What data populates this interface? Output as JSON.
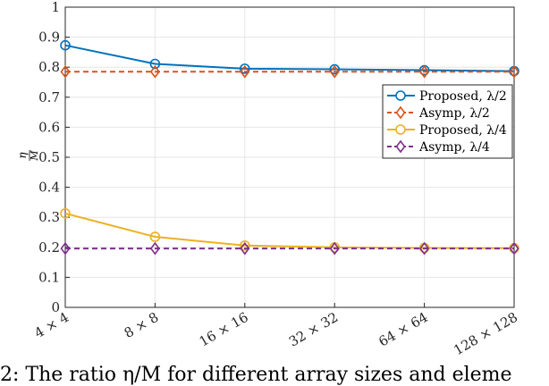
{
  "chart_data": {
    "type": "line",
    "categories": [
      "4 × 4",
      "8 × 8",
      "16 × 16",
      "32 × 32",
      "64 × 64",
      "128 × 128"
    ],
    "ylabel_num": "η",
    "ylabel_den": "M",
    "ylim": [
      0,
      1
    ],
    "yticks": [
      "0",
      "0.1",
      "0.2",
      "0.3",
      "0.4",
      "0.5",
      "0.6",
      "0.7",
      "0.8",
      "0.9",
      "1"
    ],
    "grid": true,
    "legend_position": "right",
    "series": [
      {
        "name": "Proposed, λ/2",
        "values": [
          0.873,
          0.811,
          0.795,
          0.793,
          0.79,
          0.787
        ],
        "color": "#0072BD",
        "style": "solid",
        "marker": "circle"
      },
      {
        "name": "Asymp, λ/2",
        "values": [
          0.785,
          0.785,
          0.785,
          0.785,
          0.785,
          0.785
        ],
        "color": "#D95319",
        "style": "dashed",
        "marker": "diamond"
      },
      {
        "name": "Proposed, λ/4",
        "values": [
          0.313,
          0.235,
          0.206,
          0.2,
          0.198,
          0.197
        ],
        "color": "#EDB120",
        "style": "solid",
        "marker": "circle"
      },
      {
        "name": "Asymp, λ/4",
        "values": [
          0.196,
          0.196,
          0.196,
          0.196,
          0.196,
          0.196
        ],
        "color": "#7E2F8E",
        "style": "dashed",
        "marker": "diamond"
      }
    ]
  },
  "caption": "2: The ratio η/M for different array sizes and eleme"
}
